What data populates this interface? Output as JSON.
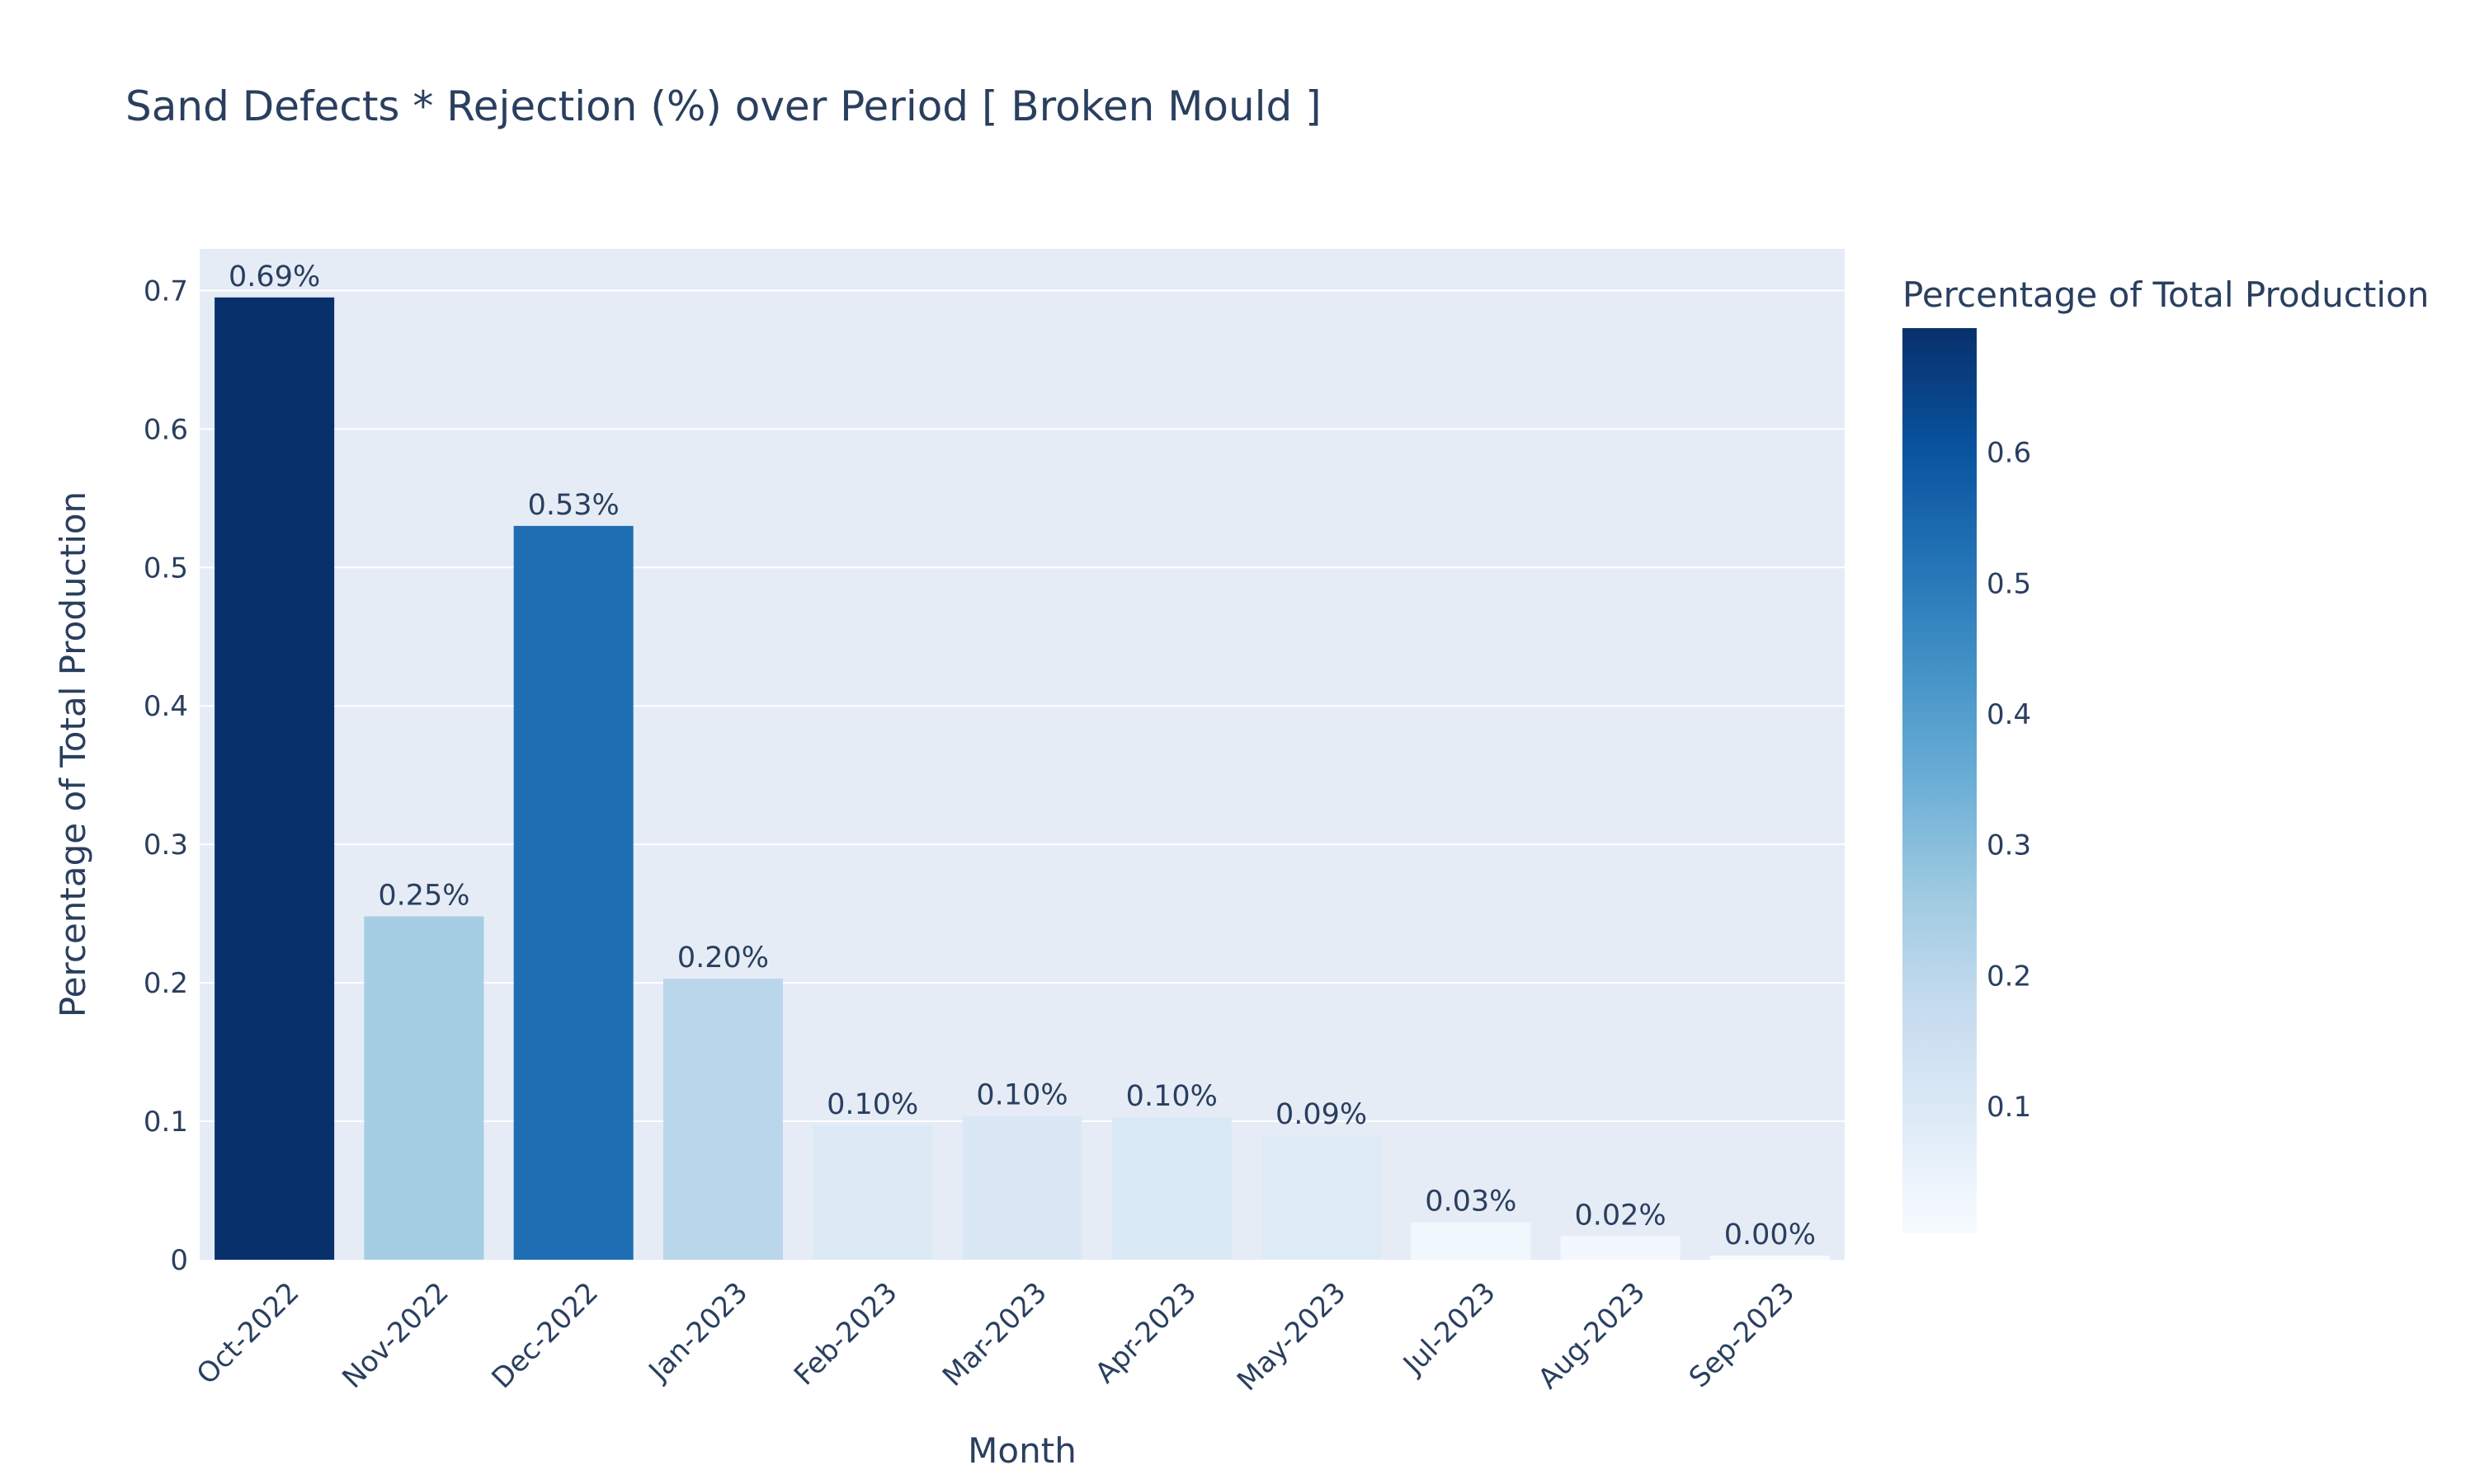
{
  "chart_data": {
    "type": "bar",
    "title": "Sand Defects * Rejection (%) over Period [ Broken Mould ]",
    "xlabel": "Month",
    "ylabel": "Percentage of Total Production",
    "categories": [
      "Oct-2022",
      "Nov-2022",
      "Dec-2022",
      "Jan-2023",
      "Feb-2023",
      "Mar-2023",
      "Apr-2023",
      "May-2023",
      "Jul-2023",
      "Aug-2023",
      "Sep-2023"
    ],
    "values": [
      0.695,
      0.248,
      0.53,
      0.203,
      0.097,
      0.104,
      0.103,
      0.09,
      0.027,
      0.017,
      0.003
    ],
    "data_labels": [
      "0.69%",
      "0.25%",
      "0.53%",
      "0.20%",
      "0.10%",
      "0.10%",
      "0.10%",
      "0.09%",
      "0.03%",
      "0.02%",
      "0.00%"
    ],
    "ylim": [
      0,
      0.73
    ],
    "yticks": [
      0,
      0.1,
      0.2,
      0.3,
      0.4,
      0.5,
      0.6,
      0.7
    ],
    "ytick_labels": [
      "0",
      "0.1",
      "0.2",
      "0.3",
      "0.4",
      "0.5",
      "0.6",
      "0.7"
    ],
    "grid": true,
    "colorscale": "Blues",
    "colorbar": {
      "title": "Percentage of Total Production",
      "range": [
        0.003,
        0.695
      ],
      "ticks": [
        0.1,
        0.2,
        0.3,
        0.4,
        0.5,
        0.6
      ],
      "tick_labels": [
        "0.1",
        "0.2",
        "0.3",
        "0.4",
        "0.5",
        "0.6"
      ],
      "placement": "right"
    },
    "colors": {
      "plot_background": "#e5ecf6",
      "gridline": "#ffffff",
      "text": "#2a3f5f"
    }
  }
}
